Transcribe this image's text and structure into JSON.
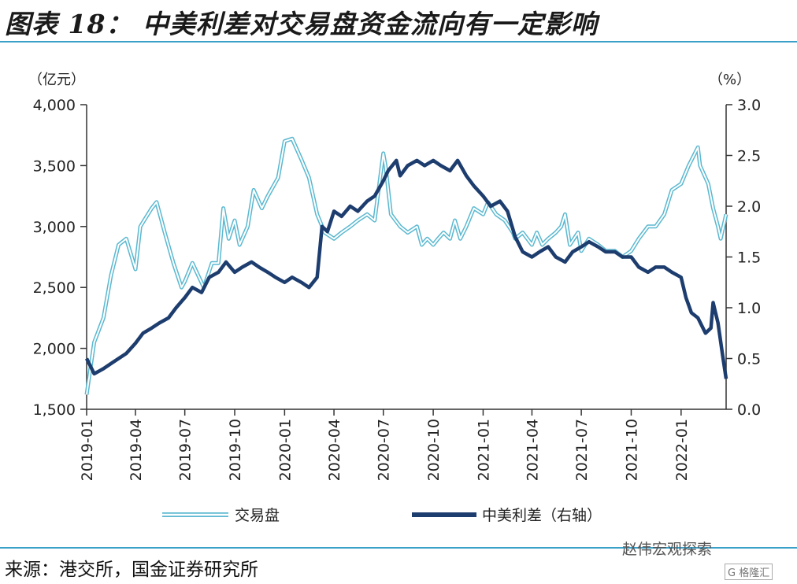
{
  "header": {
    "title": "图表 18： 中美利差对交易盘资金流向有一定影响"
  },
  "footer": {
    "source": "来源：港交所，国金证券研究所",
    "watermark": "赵伟宏观探索",
    "watermark_logo": "G 格隆汇"
  },
  "chart_data": {
    "type": "line",
    "left_unit": "（亿元）",
    "right_unit": "（%）",
    "x_tick_labels": [
      "2019-01",
      "2019-04",
      "2019-07",
      "2019-10",
      "2020-01",
      "2020-04",
      "2020-07",
      "2020-10",
      "2021-01",
      "2021-04",
      "2021-07",
      "2021-10",
      "2022-01"
    ],
    "y_left": {
      "min": 1500,
      "max": 4000,
      "ticks": [
        1500,
        2000,
        2500,
        3000,
        3500,
        4000
      ],
      "tick_labels": [
        "1,500",
        "2,000",
        "2,500",
        "3,000",
        "3,500",
        "4,000"
      ]
    },
    "y_right": {
      "min": 0.0,
      "max": 3.0,
      "ticks": [
        0,
        0.5,
        1,
        1.5,
        2,
        2.5,
        3
      ],
      "tick_labels": [
        "0.0",
        "0.5",
        "1.0",
        "1.5",
        "2.0",
        "2.5",
        "3.0"
      ]
    },
    "x_range": [
      "2019-01",
      "2022-03-25"
    ],
    "legend_position": "bottom",
    "colors": {
      "trading": "#5bb8d0",
      "spread": "#1d3d6e",
      "axis": "#333333",
      "rule": "#3aa0c8"
    },
    "series": [
      {
        "name": "交易盘",
        "axis": "left",
        "style": "double-line",
        "points": [
          [
            "2019-01",
            1620
          ],
          [
            "2019-01-15",
            2050
          ],
          [
            "2019-02",
            2250
          ],
          [
            "2019-02-15",
            2600
          ],
          [
            "2019-03",
            2850
          ],
          [
            "2019-03-15",
            2900
          ],
          [
            "2019-04",
            2650
          ],
          [
            "2019-04-10",
            3000
          ],
          [
            "2019-05",
            3150
          ],
          [
            "2019-05-10",
            3200
          ],
          [
            "2019-05-25",
            2950
          ],
          [
            "2019-06-10",
            2700
          ],
          [
            "2019-06-25",
            2500
          ],
          [
            "2019-07",
            2550
          ],
          [
            "2019-07-15",
            2700
          ],
          [
            "2019-08-05",
            2500
          ],
          [
            "2019-08-20",
            2700
          ],
          [
            "2019-09",
            2700
          ],
          [
            "2019-09-10",
            3150
          ],
          [
            "2019-09-20",
            2900
          ],
          [
            "2019-10",
            3050
          ],
          [
            "2019-10-10",
            2850
          ],
          [
            "2019-10-25",
            3000
          ],
          [
            "2019-11-05",
            3300
          ],
          [
            "2019-11-20",
            3150
          ],
          [
            "2019-12",
            3250
          ],
          [
            "2019-12-20",
            3400
          ],
          [
            "2020-01",
            3700
          ],
          [
            "2020-01-15",
            3720
          ],
          [
            "2020-02",
            3550
          ],
          [
            "2020-02-15",
            3400
          ],
          [
            "2020-03",
            3100
          ],
          [
            "2020-03-15",
            2950
          ],
          [
            "2020-04",
            2900
          ],
          [
            "2020-04-15",
            2950
          ],
          [
            "2020-05",
            3000
          ],
          [
            "2020-05-15",
            3050
          ],
          [
            "2020-06",
            3100
          ],
          [
            "2020-06-15",
            3050
          ],
          [
            "2020-07",
            3600
          ],
          [
            "2020-07-05",
            3500
          ],
          [
            "2020-07-15",
            3100
          ],
          [
            "2020-08",
            3000
          ],
          [
            "2020-08-15",
            2950
          ],
          [
            "2020-09",
            3000
          ],
          [
            "2020-09-10",
            2850
          ],
          [
            "2020-09-20",
            2900
          ],
          [
            "2020-10",
            2850
          ],
          [
            "2020-10-10",
            2900
          ],
          [
            "2020-10-20",
            2950
          ],
          [
            "2020-11",
            2900
          ],
          [
            "2020-11-10",
            3050
          ],
          [
            "2020-11-20",
            2900
          ],
          [
            "2020-12",
            3000
          ],
          [
            "2020-12-15",
            3150
          ],
          [
            "2021-01",
            3100
          ],
          [
            "2021-01-10",
            3200
          ],
          [
            "2021-01-25",
            3100
          ],
          [
            "2021-02-10",
            3050
          ],
          [
            "2021-02-25",
            2950
          ],
          [
            "2021-03",
            2900
          ],
          [
            "2021-03-15",
            2950
          ],
          [
            "2021-04",
            2850
          ],
          [
            "2021-04-10",
            2950
          ],
          [
            "2021-04-20",
            2850
          ],
          [
            "2021-05",
            2900
          ],
          [
            "2021-05-15",
            2950
          ],
          [
            "2021-05-25",
            3000
          ],
          [
            "2021-06",
            3100
          ],
          [
            "2021-06-10",
            2850
          ],
          [
            "2021-06-25",
            2950
          ],
          [
            "2021-07",
            2800
          ],
          [
            "2021-07-15",
            2900
          ],
          [
            "2021-08",
            2850
          ],
          [
            "2021-08-15",
            2800
          ],
          [
            "2021-09",
            2800
          ],
          [
            "2021-09-15",
            2750
          ],
          [
            "2021-10",
            2800
          ],
          [
            "2021-10-15",
            2900
          ],
          [
            "2021-11",
            3000
          ],
          [
            "2021-11-15",
            3000
          ],
          [
            "2021-12",
            3100
          ],
          [
            "2021-12-15",
            3300
          ],
          [
            "2022-01",
            3350
          ],
          [
            "2022-01-15",
            3500
          ],
          [
            "2022-02",
            3650
          ],
          [
            "2022-02-05",
            3500
          ],
          [
            "2022-02-20",
            3350
          ],
          [
            "2022-03",
            3150
          ],
          [
            "2022-03-10",
            3000
          ],
          [
            "2022-03-15",
            2900
          ],
          [
            "2022-03-25",
            3100
          ]
        ]
      },
      {
        "name": "中美利差（右轴）",
        "axis": "right",
        "style": "thick",
        "points": [
          [
            "2019-01",
            0.5
          ],
          [
            "2019-01-15",
            0.35
          ],
          [
            "2019-02",
            0.4
          ],
          [
            "2019-02-15",
            0.45
          ],
          [
            "2019-03",
            0.5
          ],
          [
            "2019-03-15",
            0.55
          ],
          [
            "2019-04",
            0.65
          ],
          [
            "2019-04-15",
            0.75
          ],
          [
            "2019-05",
            0.8
          ],
          [
            "2019-05-15",
            0.85
          ],
          [
            "2019-06",
            0.9
          ],
          [
            "2019-06-15",
            1.0
          ],
          [
            "2019-07",
            1.1
          ],
          [
            "2019-07-15",
            1.2
          ],
          [
            "2019-08",
            1.15
          ],
          [
            "2019-08-15",
            1.3
          ],
          [
            "2019-09",
            1.35
          ],
          [
            "2019-09-15",
            1.45
          ],
          [
            "2019-10",
            1.35
          ],
          [
            "2019-10-15",
            1.4
          ],
          [
            "2019-11",
            1.45
          ],
          [
            "2019-11-15",
            1.4
          ],
          [
            "2019-12",
            1.35
          ],
          [
            "2019-12-15",
            1.3
          ],
          [
            "2020-01",
            1.25
          ],
          [
            "2020-01-15",
            1.3
          ],
          [
            "2020-02",
            1.25
          ],
          [
            "2020-02-15",
            1.2
          ],
          [
            "2020-03",
            1.3
          ],
          [
            "2020-03-10",
            1.8
          ],
          [
            "2020-03-20",
            1.75
          ],
          [
            "2020-04",
            1.95
          ],
          [
            "2020-04-15",
            1.9
          ],
          [
            "2020-05",
            2.0
          ],
          [
            "2020-05-15",
            1.95
          ],
          [
            "2020-06",
            2.05
          ],
          [
            "2020-06-15",
            2.1
          ],
          [
            "2020-07",
            2.25
          ],
          [
            "2020-07-10",
            2.35
          ],
          [
            "2020-07-25",
            2.45
          ],
          [
            "2020-08",
            2.3
          ],
          [
            "2020-08-15",
            2.4
          ],
          [
            "2020-09",
            2.45
          ],
          [
            "2020-09-15",
            2.4
          ],
          [
            "2020-10",
            2.45
          ],
          [
            "2020-10-15",
            2.4
          ],
          [
            "2020-11",
            2.35
          ],
          [
            "2020-11-15",
            2.45
          ],
          [
            "2020-12",
            2.3
          ],
          [
            "2020-12-15",
            2.2
          ],
          [
            "2021-01",
            2.1
          ],
          [
            "2021-01-15",
            2.0
          ],
          [
            "2021-02",
            2.05
          ],
          [
            "2021-02-15",
            1.95
          ],
          [
            "2021-03",
            1.7
          ],
          [
            "2021-03-15",
            1.55
          ],
          [
            "2021-04",
            1.5
          ],
          [
            "2021-04-15",
            1.55
          ],
          [
            "2021-05",
            1.6
          ],
          [
            "2021-05-15",
            1.5
          ],
          [
            "2021-06",
            1.45
          ],
          [
            "2021-06-15",
            1.55
          ],
          [
            "2021-07",
            1.6
          ],
          [
            "2021-07-15",
            1.65
          ],
          [
            "2021-08",
            1.6
          ],
          [
            "2021-08-15",
            1.55
          ],
          [
            "2021-09",
            1.55
          ],
          [
            "2021-09-15",
            1.5
          ],
          [
            "2021-10",
            1.5
          ],
          [
            "2021-10-15",
            1.4
          ],
          [
            "2021-11",
            1.35
          ],
          [
            "2021-11-15",
            1.4
          ],
          [
            "2021-12",
            1.4
          ],
          [
            "2021-12-15",
            1.35
          ],
          [
            "2022-01",
            1.3
          ],
          [
            "2022-01-10",
            1.1
          ],
          [
            "2022-01-20",
            0.95
          ],
          [
            "2022-02",
            0.9
          ],
          [
            "2022-02-15",
            0.75
          ],
          [
            "2022-02-25",
            0.8
          ],
          [
            "2022-03",
            1.05
          ],
          [
            "2022-03-10",
            0.85
          ],
          [
            "2022-03-18",
            0.55
          ],
          [
            "2022-03-25",
            0.3
          ]
        ]
      }
    ]
  }
}
